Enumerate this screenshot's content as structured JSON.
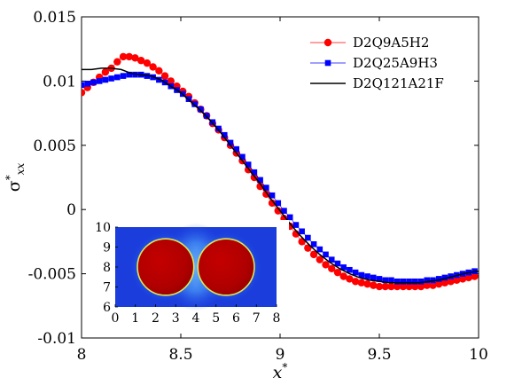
{
  "chart_data": {
    "type": "line",
    "xlabel": "x*",
    "ylabel": "σ*xx",
    "xlim": [
      8,
      10
    ],
    "ylim": [
      -0.01,
      0.015
    ],
    "x_ticks": [
      "8",
      "8.5",
      "9",
      "9.5",
      "10"
    ],
    "y_ticks": [
      "-0.01",
      "-0.005",
      "0",
      "0.005",
      "0.01",
      "0.015"
    ],
    "grid": false,
    "legend_position": "top-right",
    "series": [
      {
        "name": "D2Q9A5H2",
        "color": "#ff0000",
        "marker": "circle",
        "line": "thin",
        "x": [
          8.0,
          8.03,
          8.06,
          8.09,
          8.12,
          8.15,
          8.18,
          8.21,
          8.24,
          8.27,
          8.3,
          8.33,
          8.36,
          8.39,
          8.42,
          8.45,
          8.48,
          8.51,
          8.54,
          8.57,
          8.6,
          8.63,
          8.66,
          8.69,
          8.72,
          8.75,
          8.78,
          8.81,
          8.84,
          8.87,
          8.9,
          8.93,
          8.96,
          8.99,
          9.02,
          9.05,
          9.08,
          9.11,
          9.14,
          9.17,
          9.2,
          9.23,
          9.26,
          9.29,
          9.32,
          9.35,
          9.38,
          9.41,
          9.44,
          9.47,
          9.5,
          9.53,
          9.56,
          9.59,
          9.62,
          9.65,
          9.68,
          9.71,
          9.74,
          9.77,
          9.8,
          9.83,
          9.86,
          9.89,
          9.92,
          9.95,
          9.98
        ],
        "y": [
          0.0091,
          0.0095,
          0.0099,
          0.0103,
          0.0107,
          0.011,
          0.0115,
          0.0119,
          0.0119,
          0.0118,
          0.0116,
          0.0114,
          0.0111,
          0.0108,
          0.0104,
          0.01,
          0.0096,
          0.0092,
          0.0088,
          0.0083,
          0.0078,
          0.0073,
          0.0067,
          0.0062,
          0.0056,
          0.005,
          0.0044,
          0.0038,
          0.0031,
          0.0025,
          0.0018,
          0.0012,
          0.0005,
          -0.0001,
          -0.0007,
          -0.0013,
          -0.0019,
          -0.0025,
          -0.003,
          -0.0035,
          -0.0039,
          -0.0043,
          -0.0046,
          -0.0049,
          -0.0052,
          -0.0054,
          -0.0056,
          -0.0057,
          -0.0058,
          -0.0059,
          -0.006,
          -0.006,
          -0.006,
          -0.006,
          -0.006,
          -0.006,
          -0.006,
          -0.006,
          -0.0059,
          -0.0059,
          -0.0058,
          -0.0057,
          -0.0056,
          -0.0055,
          -0.0054,
          -0.0053,
          -0.0052
        ]
      },
      {
        "name": "D2Q25A9H3",
        "color": "#0000ff",
        "marker": "square",
        "line": "thin",
        "x": [
          8.0,
          8.03,
          8.06,
          8.09,
          8.12,
          8.15,
          8.18,
          8.21,
          8.24,
          8.27,
          8.3,
          8.33,
          8.36,
          8.39,
          8.42,
          8.45,
          8.48,
          8.51,
          8.54,
          8.57,
          8.6,
          8.63,
          8.66,
          8.69,
          8.72,
          8.75,
          8.78,
          8.81,
          8.84,
          8.87,
          8.9,
          8.93,
          8.96,
          8.99,
          9.02,
          9.05,
          9.08,
          9.11,
          9.14,
          9.17,
          9.2,
          9.23,
          9.26,
          9.29,
          9.32,
          9.35,
          9.38,
          9.41,
          9.44,
          9.47,
          9.5,
          9.53,
          9.56,
          9.59,
          9.62,
          9.65,
          9.68,
          9.71,
          9.74,
          9.77,
          9.8,
          9.83,
          9.86,
          9.89,
          9.92,
          9.95,
          9.98
        ],
        "y": [
          0.0097,
          0.0098,
          0.0099,
          0.01,
          0.0101,
          0.0102,
          0.0103,
          0.0104,
          0.0105,
          0.0105,
          0.0105,
          0.0104,
          0.0103,
          0.0101,
          0.0099,
          0.0096,
          0.0093,
          0.009,
          0.0086,
          0.0082,
          0.0078,
          0.0073,
          0.0068,
          0.0063,
          0.0058,
          0.0052,
          0.0047,
          0.0041,
          0.0035,
          0.0029,
          0.0023,
          0.0017,
          0.0011,
          0.0005,
          -0.0001,
          -0.0006,
          -0.0012,
          -0.0017,
          -0.0022,
          -0.0027,
          -0.0031,
          -0.0035,
          -0.0039,
          -0.0042,
          -0.0045,
          -0.0047,
          -0.0049,
          -0.0051,
          -0.0052,
          -0.0053,
          -0.0054,
          -0.0055,
          -0.0055,
          -0.0056,
          -0.0056,
          -0.0056,
          -0.0056,
          -0.0056,
          -0.0055,
          -0.0055,
          -0.0054,
          -0.0053,
          -0.0052,
          -0.0051,
          -0.005,
          -0.0049,
          -0.0048
        ]
      },
      {
        "name": "D2Q121A21F",
        "color": "#000000",
        "marker": "none",
        "line": "solid",
        "x": [
          8.0,
          8.05,
          8.1,
          8.15,
          8.2,
          8.25,
          8.3,
          8.35,
          8.4,
          8.45,
          8.5,
          8.55,
          8.6,
          8.65,
          8.7,
          8.75,
          8.8,
          8.85,
          8.9,
          8.95,
          9.0,
          9.05,
          9.1,
          9.15,
          9.2,
          9.25,
          9.3,
          9.35,
          9.4,
          9.45,
          9.5,
          9.55,
          9.6,
          9.65,
          9.7,
          9.75,
          9.8,
          9.85,
          9.9,
          9.95,
          10.0
        ],
        "y": [
          0.0109,
          0.0109,
          0.011,
          0.011,
          0.0109,
          0.0106,
          0.0105,
          0.0104,
          0.0101,
          0.0096,
          0.0091,
          0.0084,
          0.0077,
          0.0069,
          0.006,
          0.005,
          0.004,
          0.003,
          0.002,
          0.0009,
          -0.0001,
          -0.0011,
          -0.002,
          -0.0028,
          -0.0035,
          -0.0041,
          -0.0046,
          -0.005,
          -0.0053,
          -0.0055,
          -0.0056,
          -0.0057,
          -0.0057,
          -0.0057,
          -0.0057,
          -0.0056,
          -0.0055,
          -0.0053,
          -0.0051,
          -0.0049,
          -0.0048
        ]
      }
    ],
    "inset": {
      "type": "heatmap",
      "x_ticks": [
        "0",
        "1",
        "2",
        "3",
        "4",
        "5",
        "6",
        "7",
        "8"
      ],
      "y_ticks": [
        "6",
        "7",
        "8",
        "9",
        "10"
      ],
      "xlim": [
        0,
        8
      ],
      "ylim": [
        6,
        10
      ],
      "background_color": "#1a3ddc",
      "particle_color": "#b80000",
      "rim_color": "#d7e85a",
      "particles": [
        {
          "cx": 2.5,
          "cy": 8,
          "r": 1.4
        },
        {
          "cx": 5.5,
          "cy": 8,
          "r": 1.4
        }
      ]
    }
  }
}
